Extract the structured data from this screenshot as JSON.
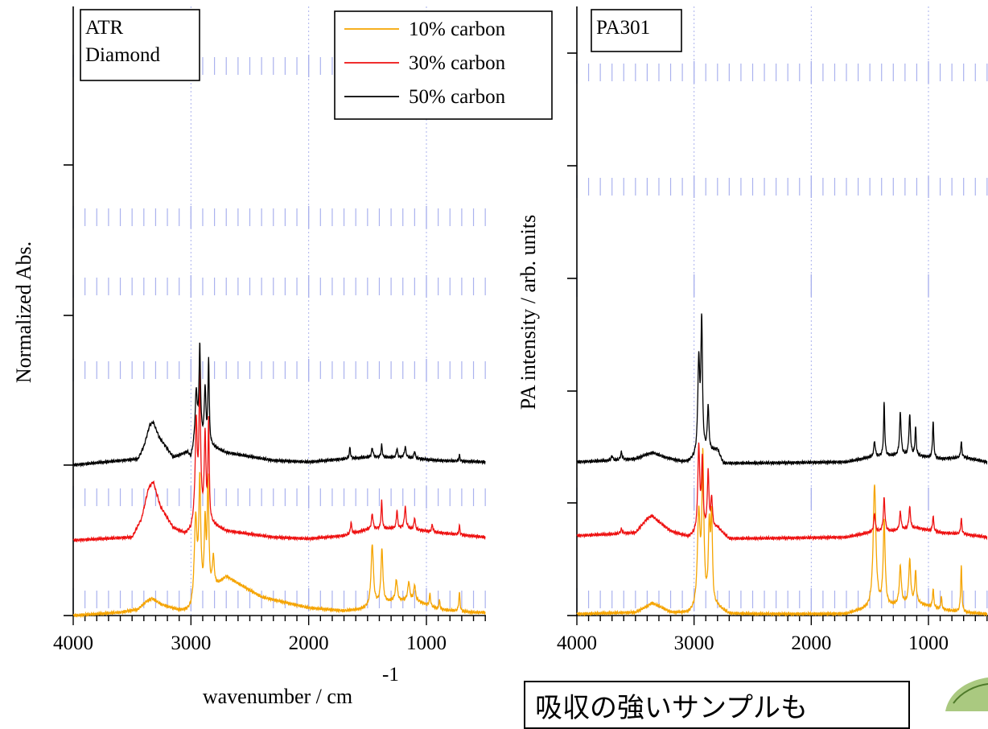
{
  "colors": {
    "ten": "#f5a400",
    "thirty": "#ee1111",
    "fifty": "#000000",
    "grid": "#aab2ee"
  },
  "note": {
    "text": "吸収の強いサンプルも"
  },
  "chart_data": [
    {
      "type": "line",
      "box_label": [
        "ATR",
        "Diamond"
      ],
      "xlabel": "wavenumber / cm",
      "xlabel_sup": "-1",
      "ylabel": "Normalized Abs.",
      "xlim": [
        4000,
        500
      ],
      "xticks": [
        4000,
        3000,
        2000,
        1000
      ],
      "legend": {
        "placement": "top-right",
        "entries": [
          {
            "label": "10% carbon",
            "color": "#f5a400"
          },
          {
            "label": "30% carbon",
            "color": "#ee1111"
          },
          {
            "label": "50% carbon",
            "color": "#000000"
          }
        ]
      },
      "series": [
        {
          "name": "10% carbon",
          "offset": 0,
          "scale": 2.25,
          "baseline": [
            [
              4000,
              0
            ],
            [
              3600,
              0.02
            ],
            [
              3450,
              0.04
            ],
            [
              3380,
              0.09
            ],
            [
              3330,
              0.11
            ],
            [
              3250,
              0.07
            ],
            [
              3100,
              0.03
            ],
            [
              3000,
              0.02
            ],
            [
              2700,
              0.25
            ],
            [
              2400,
              0.12
            ],
            [
              2000,
              0.05
            ],
            [
              1700,
              0.03
            ],
            [
              1550,
              0.04
            ],
            [
              1300,
              0.09
            ],
            [
              1100,
              0.1
            ],
            [
              900,
              0.04
            ],
            [
              600,
              0.02
            ],
            [
              500,
              0.02
            ]
          ],
          "peaks": [
            [
              2960,
              0.55,
              14
            ],
            [
              2925,
              0.75,
              10
            ],
            [
              2880,
              0.45,
              8
            ],
            [
              2855,
              0.72,
              8
            ],
            [
              2810,
              0.2,
              10
            ],
            [
              1460,
              0.4,
              12
            ],
            [
              1378,
              0.35,
              10
            ],
            [
              1255,
              0.14,
              10
            ],
            [
              1150,
              0.12,
              10
            ],
            [
              1100,
              0.1,
              8
            ],
            [
              970,
              0.08,
              6
            ],
            [
              890,
              0.06,
              6
            ],
            [
              720,
              0.12,
              6
            ]
          ]
        },
        {
          "name": "30% carbon",
          "offset": 1.1,
          "scale": 2.25,
          "baseline": [
            [
              4000,
              0
            ],
            [
              3500,
              0.02
            ],
            [
              3420,
              0.14
            ],
            [
              3360,
              0.34
            ],
            [
              3320,
              0.38
            ],
            [
              3260,
              0.22
            ],
            [
              3150,
              0.08
            ],
            [
              3050,
              0.04
            ],
            [
              3000,
              0.06
            ],
            [
              2960,
              0.15
            ],
            [
              2700,
              0.06
            ],
            [
              2300,
              0.02
            ],
            [
              2000,
              0.01
            ],
            [
              1700,
              0.03
            ],
            [
              1500,
              0.07
            ],
            [
              1200,
              0.08
            ],
            [
              900,
              0.05
            ],
            [
              500,
              0.02
            ]
          ],
          "peaks": [
            [
              2955,
              0.6,
              10
            ],
            [
              2925,
              0.9,
              8
            ],
            [
              2880,
              0.55,
              8
            ],
            [
              2850,
              0.65,
              6
            ],
            [
              1640,
              0.08,
              6
            ],
            [
              1460,
              0.1,
              8
            ],
            [
              1380,
              0.18,
              6
            ],
            [
              1250,
              0.12,
              6
            ],
            [
              1180,
              0.14,
              8
            ],
            [
              1100,
              0.08,
              6
            ],
            [
              950,
              0.05,
              6
            ],
            [
              720,
              0.06,
              5
            ]
          ]
        },
        {
          "name": "50% carbon",
          "offset": 2.2,
          "scale": 2.25,
          "baseline": [
            [
              4000,
              0
            ],
            [
              3450,
              0.04
            ],
            [
              3400,
              0.12
            ],
            [
              3350,
              0.26
            ],
            [
              3320,
              0.28
            ],
            [
              3270,
              0.18
            ],
            [
              3150,
              0.05
            ],
            [
              3030,
              0.08
            ],
            [
              3000,
              0.04
            ],
            [
              2960,
              0.16
            ],
            [
              2700,
              0.08
            ],
            [
              2300,
              0.03
            ],
            [
              2000,
              0.02
            ],
            [
              1700,
              0.04
            ],
            [
              1500,
              0.05
            ],
            [
              1200,
              0.05
            ],
            [
              900,
              0.03
            ],
            [
              500,
              0.02
            ]
          ],
          "peaks": [
            [
              2955,
              0.3,
              10
            ],
            [
              2925,
              0.6,
              8
            ],
            [
              2880,
              0.35,
              8
            ],
            [
              2850,
              0.55,
              6
            ],
            [
              1650,
              0.07,
              6
            ],
            [
              1460,
              0.06,
              8
            ],
            [
              1380,
              0.08,
              6
            ],
            [
              1250,
              0.06,
              6
            ],
            [
              1180,
              0.07,
              8
            ],
            [
              1100,
              0.05,
              6
            ],
            [
              720,
              0.04,
              5
            ]
          ]
        }
      ]
    },
    {
      "type": "line",
      "box_label": [
        "PA301"
      ],
      "xlabel": "",
      "ylabel": "PA intensity / arb. units",
      "xlim": [
        4000,
        500
      ],
      "xticks": [
        4000,
        3000,
        2000,
        1000
      ],
      "series": [
        {
          "name": "10% carbon",
          "offset": 0,
          "scale": 2.25,
          "baseline": [
            [
              4000,
              0.01
            ],
            [
              3500,
              0.02
            ],
            [
              3400,
              0.06
            ],
            [
              3360,
              0.08
            ],
            [
              3300,
              0.06
            ],
            [
              3200,
              0.02
            ],
            [
              3050,
              0.01
            ],
            [
              2800,
              0.05
            ],
            [
              2700,
              0.01
            ],
            [
              1700,
              0.01
            ],
            [
              1600,
              0.03
            ],
            [
              1300,
              0.06
            ],
            [
              1100,
              0.08
            ],
            [
              900,
              0.04
            ],
            [
              700,
              0.02
            ],
            [
              500,
              0.01
            ]
          ],
          "peaks": [
            [
              2960,
              0.6,
              14
            ],
            [
              2925,
              0.95,
              10
            ],
            [
              2870,
              0.5,
              10
            ],
            [
              2850,
              0.55,
              8
            ],
            [
              1460,
              0.8,
              14
            ],
            [
              1378,
              0.55,
              10
            ],
            [
              1240,
              0.25,
              10
            ],
            [
              1160,
              0.28,
              10
            ],
            [
              1110,
              0.2,
              8
            ],
            [
              960,
              0.12,
              6
            ],
            [
              890,
              0.08,
              6
            ],
            [
              720,
              0.3,
              6
            ]
          ]
        },
        {
          "name": "30% carbon",
          "offset": 1.1,
          "scale": 2.25,
          "baseline": [
            [
              4000,
              0.03
            ],
            [
              3700,
              0.04
            ],
            [
              3500,
              0.05
            ],
            [
              3400,
              0.14
            ],
            [
              3360,
              0.16
            ],
            [
              3300,
              0.12
            ],
            [
              3200,
              0.06
            ],
            [
              3050,
              0.02
            ],
            [
              2800,
              0.08
            ],
            [
              2700,
              0.01
            ],
            [
              1700,
              0.02
            ],
            [
              1500,
              0.05
            ],
            [
              1300,
              0.06
            ],
            [
              1100,
              0.08
            ],
            [
              900,
              0.05
            ],
            [
              700,
              0.04
            ],
            [
              500,
              0.02
            ]
          ],
          "peaks": [
            [
              3620,
              0.03,
              8
            ],
            [
              2960,
              0.55,
              10
            ],
            [
              2930,
              0.45,
              8
            ],
            [
              2880,
              0.38,
              8
            ],
            [
              2850,
              0.2,
              8
            ],
            [
              1460,
              0.12,
              8
            ],
            [
              1378,
              0.22,
              8
            ],
            [
              1240,
              0.12,
              8
            ],
            [
              1160,
              0.14,
              8
            ],
            [
              960,
              0.1,
              6
            ],
            [
              720,
              0.1,
              6
            ]
          ]
        },
        {
          "name": "50% carbon",
          "offset": 2.2,
          "scale": 2.25,
          "baseline": [
            [
              4000,
              0.02
            ],
            [
              3700,
              0.03
            ],
            [
              3500,
              0.04
            ],
            [
              3400,
              0.07
            ],
            [
              3350,
              0.08
            ],
            [
              3250,
              0.05
            ],
            [
              3100,
              0.02
            ],
            [
              3050,
              0.02
            ],
            [
              2800,
              0.1
            ],
            [
              2750,
              0.01
            ],
            [
              1700,
              0.02
            ],
            [
              1500,
              0.05
            ],
            [
              1300,
              0.06
            ],
            [
              1100,
              0.06
            ],
            [
              900,
              0.04
            ],
            [
              700,
              0.05
            ],
            [
              500,
              0.02
            ]
          ],
          "peaks": [
            [
              3620,
              0.05,
              8
            ],
            [
              3700,
              0.03,
              8
            ],
            [
              2960,
              0.6,
              10
            ],
            [
              2935,
              0.85,
              8
            ],
            [
              2880,
              0.3,
              8
            ],
            [
              1460,
              0.1,
              8
            ],
            [
              1378,
              0.35,
              6
            ],
            [
              1240,
              0.28,
              8
            ],
            [
              1160,
              0.26,
              8
            ],
            [
              1110,
              0.18,
              6
            ],
            [
              960,
              0.24,
              6
            ],
            [
              720,
              0.1,
              6
            ]
          ]
        }
      ]
    }
  ]
}
